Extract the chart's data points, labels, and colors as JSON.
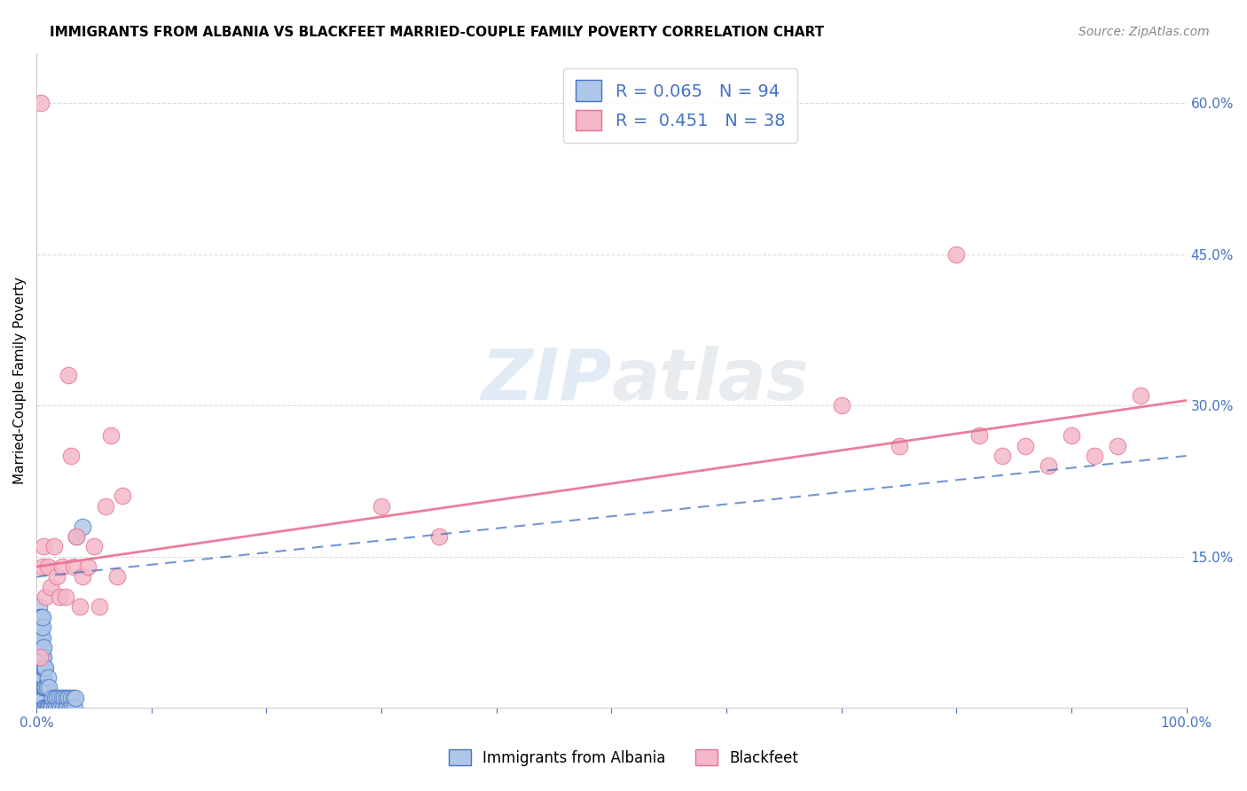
{
  "title": "IMMIGRANTS FROM ALBANIA VS BLACKFEET MARRIED-COUPLE FAMILY POVERTY CORRELATION CHART",
  "source": "Source: ZipAtlas.com",
  "ylabel_label": "Married-Couple Family Poverty",
  "xlim": [
    0.0,
    1.0
  ],
  "ylim": [
    0.0,
    0.65
  ],
  "xticks": [
    0.0,
    0.1,
    0.2,
    0.3,
    0.4,
    0.5,
    0.6,
    0.7,
    0.8,
    0.9,
    1.0
  ],
  "xticklabels": [
    "0.0%",
    "",
    "",
    "",
    "",
    "",
    "",
    "",
    "",
    "",
    "100.0%"
  ],
  "yticks": [
    0.0,
    0.15,
    0.3,
    0.45,
    0.6
  ],
  "yticklabels": [
    "",
    "15.0%",
    "30.0%",
    "45.0%",
    "60.0%"
  ],
  "grid_color": "#dddddd",
  "background_color": "#ffffff",
  "albania_color": "#aec6e8",
  "albania_edge_color": "#4472c4",
  "blackfeet_color": "#f4b8c8",
  "blackfeet_edge_color": "#e87090",
  "albania_R": 0.065,
  "albania_N": 94,
  "blackfeet_R": 0.451,
  "blackfeet_N": 38,
  "albania_line_color": "#4472c4",
  "blackfeet_line_color": "#e87090",
  "legend_label_albania": "Immigrants from Albania",
  "legend_label_blackfeet": "Blackfeet",
  "watermark_zip": "ZIP",
  "watermark_atlas": "atlas",
  "albania_x": [
    0.001,
    0.001,
    0.001,
    0.001,
    0.001,
    0.001,
    0.001,
    0.001,
    0.001,
    0.001,
    0.002,
    0.002,
    0.002,
    0.002,
    0.002,
    0.002,
    0.002,
    0.002,
    0.002,
    0.002,
    0.003,
    0.003,
    0.003,
    0.003,
    0.003,
    0.003,
    0.003,
    0.003,
    0.003,
    0.003,
    0.004,
    0.004,
    0.004,
    0.004,
    0.004,
    0.004,
    0.004,
    0.004,
    0.004,
    0.004,
    0.005,
    0.005,
    0.005,
    0.005,
    0.005,
    0.005,
    0.005,
    0.005,
    0.005,
    0.005,
    0.006,
    0.006,
    0.006,
    0.006,
    0.006,
    0.006,
    0.006,
    0.007,
    0.007,
    0.007,
    0.008,
    0.008,
    0.008,
    0.009,
    0.009,
    0.01,
    0.01,
    0.011,
    0.011,
    0.012,
    0.013,
    0.014,
    0.015,
    0.016,
    0.017,
    0.018,
    0.019,
    0.02,
    0.021,
    0.022,
    0.023,
    0.024,
    0.025,
    0.026,
    0.027,
    0.028,
    0.029,
    0.03,
    0.031,
    0.032,
    0.033,
    0.034,
    0.035,
    0.04
  ],
  "albania_y": [
    0.0,
    0.01,
    0.02,
    0.03,
    0.04,
    0.05,
    0.06,
    0.07,
    0.08,
    0.09,
    0.0,
    0.01,
    0.02,
    0.03,
    0.04,
    0.05,
    0.06,
    0.07,
    0.08,
    0.1,
    0.0,
    0.01,
    0.02,
    0.03,
    0.04,
    0.05,
    0.06,
    0.07,
    0.08,
    0.09,
    0.0,
    0.01,
    0.02,
    0.03,
    0.04,
    0.05,
    0.06,
    0.07,
    0.08,
    0.09,
    0.0,
    0.01,
    0.02,
    0.03,
    0.04,
    0.05,
    0.06,
    0.07,
    0.08,
    0.09,
    0.0,
    0.01,
    0.02,
    0.03,
    0.04,
    0.05,
    0.06,
    0.0,
    0.02,
    0.04,
    0.0,
    0.02,
    0.04,
    0.0,
    0.02,
    0.0,
    0.03,
    0.0,
    0.02,
    0.0,
    0.0,
    0.01,
    0.0,
    0.01,
    0.0,
    0.01,
    0.0,
    0.01,
    0.0,
    0.01,
    0.0,
    0.01,
    0.0,
    0.01,
    0.0,
    0.01,
    0.0,
    0.01,
    0.0,
    0.01,
    0.0,
    0.01,
    0.17,
    0.18
  ],
  "albania_trend_x0": 0.0,
  "albania_trend_x1": 1.0,
  "albania_trend_y0": 0.13,
  "albania_trend_y1": 0.25,
  "blackfeet_x": [
    0.004,
    0.005,
    0.006,
    0.008,
    0.01,
    0.012,
    0.015,
    0.018,
    0.02,
    0.022,
    0.025,
    0.028,
    0.03,
    0.032,
    0.035,
    0.038,
    0.04,
    0.045,
    0.05,
    0.055,
    0.06,
    0.065,
    0.07,
    0.075,
    0.3,
    0.35,
    0.7,
    0.75,
    0.8,
    0.82,
    0.84,
    0.86,
    0.88,
    0.9,
    0.92,
    0.94,
    0.96,
    0.003
  ],
  "blackfeet_y": [
    0.6,
    0.14,
    0.16,
    0.11,
    0.14,
    0.12,
    0.16,
    0.13,
    0.11,
    0.14,
    0.11,
    0.33,
    0.25,
    0.14,
    0.17,
    0.1,
    0.13,
    0.14,
    0.16,
    0.1,
    0.2,
    0.27,
    0.13,
    0.21,
    0.2,
    0.17,
    0.3,
    0.26,
    0.45,
    0.27,
    0.25,
    0.26,
    0.24,
    0.27,
    0.25,
    0.26,
    0.31,
    0.05
  ],
  "blackfeet_trend_x0": 0.0,
  "blackfeet_trend_x1": 1.0,
  "blackfeet_trend_y0": 0.14,
  "blackfeet_trend_y1": 0.305
}
